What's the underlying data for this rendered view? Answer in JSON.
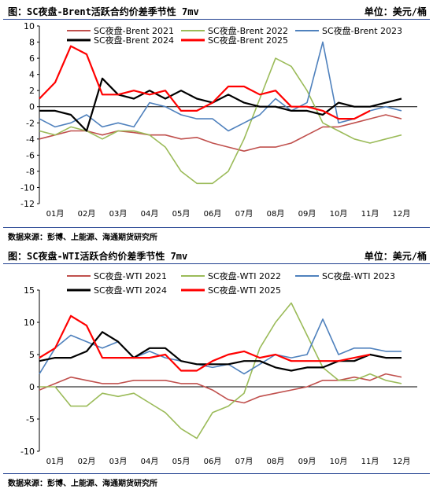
{
  "colors": {
    "y2021": "#c0504d",
    "y2022": "#9bbb59",
    "y2023": "#4f81bd",
    "y2024": "#000000",
    "y2025": "#ff0000",
    "rule": "#1f3f8f"
  },
  "chart_data": [
    {
      "type": "line",
      "title": "图：SC夜盘-Brent活跃合约价差季节性 7mv",
      "unit": "单位：美元/桶",
      "source": "数据来源：彭博、上能源、海通期货研究所",
      "xlabel": "",
      "ylabel": "",
      "ylim": [
        -12,
        10
      ],
      "yticks": [
        10,
        8,
        6,
        4,
        2,
        0,
        -2,
        -4,
        -6,
        -8,
        -10,
        -12
      ],
      "xticks": [
        "01月",
        "02月",
        "03月",
        "04月",
        "05月",
        "06月",
        "07月",
        "08月",
        "09月",
        "10月",
        "11月",
        "12月"
      ],
      "grid": false,
      "legend_position": "top",
      "x": [
        1,
        1.5,
        2,
        2.5,
        3,
        3.5,
        4,
        4.5,
        5,
        5.5,
        6,
        6.5,
        7,
        7.5,
        8,
        8.5,
        9,
        9.5,
        10,
        10.5,
        11,
        11.5,
        12,
        12.5
      ],
      "series": [
        {
          "name": "SC夜盘-Brent 2021",
          "color_key": "y2021",
          "values": [
            -4,
            -3.5,
            -3,
            -3,
            -3.5,
            -3,
            -3.2,
            -3.5,
            -3.5,
            -4,
            -3.8,
            -4.5,
            -5,
            -5.5,
            -5,
            -5,
            -4.5,
            -3.5,
            -2.5,
            -2.5,
            -2,
            -1.5,
            -1,
            -1.5
          ]
        },
        {
          "name": "SC夜盘-Brent 2022",
          "color_key": "y2022",
          "values": [
            -3,
            -3.5,
            -2.5,
            -3,
            -4,
            -3,
            -3,
            -3.5,
            -5,
            -8,
            -9.5,
            -9.5,
            -8,
            -4,
            1,
            6,
            5,
            2,
            -2,
            -3,
            -4,
            -4.5,
            -4,
            -3.5
          ]
        },
        {
          "name": "SC夜盘-Brent 2023",
          "color_key": "y2023",
          "values": [
            -1.5,
            -2.5,
            -2,
            -1,
            -2.5,
            -2,
            -2.5,
            0.5,
            0,
            -1,
            -1.5,
            -1.5,
            -3,
            -2,
            -1,
            1,
            -0.5,
            0.5,
            8,
            -2,
            -1.5,
            -0.5,
            0,
            -0.5
          ]
        },
        {
          "name": "SC夜盘-Brent 2024",
          "color_key": "y2024",
          "values": [
            -0.5,
            -0.5,
            -1,
            -3,
            3.5,
            1.5,
            1,
            2,
            1,
            2,
            1,
            0.5,
            1.5,
            0.5,
            0,
            0,
            -0.5,
            -0.5,
            -1,
            0.5,
            0,
            0,
            0.5,
            1
          ]
        },
        {
          "name": "SC夜盘-Brent 2025",
          "color_key": "y2025",
          "values": [
            1,
            3,
            7.5,
            6.5,
            1.5,
            1.5,
            2,
            1.5,
            2,
            -0.5,
            -0.5,
            0.5,
            2.5,
            2.5,
            1.5,
            2,
            0,
            0,
            -0.5,
            -1.5,
            -1.5,
            -0.5,
            null,
            null
          ]
        }
      ]
    },
    {
      "type": "line",
      "title": "图：SC夜盘-WTI活跃合约价差季节性 7mv",
      "unit": "单位：美元/桶",
      "source": "数据来源：彭博、上能源、海通期货研究所",
      "xlabel": "",
      "ylabel": "",
      "ylim": [
        -10,
        15
      ],
      "yticks": [
        15,
        10,
        5,
        0,
        -5,
        -10
      ],
      "xticks": [
        "01月",
        "02月",
        "03月",
        "04月",
        "05月",
        "06月",
        "07月",
        "08月",
        "09月",
        "10月",
        "11月",
        "12月"
      ],
      "grid": false,
      "legend_position": "top",
      "x": [
        1,
        1.5,
        2,
        2.5,
        3,
        3.5,
        4,
        4.5,
        5,
        5.5,
        6,
        6.5,
        7,
        7.5,
        8,
        8.5,
        9,
        9.5,
        10,
        10.5,
        11,
        11.5,
        12,
        12.5
      ],
      "series": [
        {
          "name": "SC夜盘-WTI 2021",
          "color_key": "y2021",
          "values": [
            -0.5,
            0.5,
            1.5,
            1,
            0.5,
            0.5,
            1,
            1,
            1,
            0.5,
            0.5,
            -0.5,
            -2,
            -2.5,
            -1.5,
            -1,
            -0.5,
            0,
            1,
            1,
            1.5,
            1,
            2,
            1.5
          ]
        },
        {
          "name": "SC夜盘-WTI 2022",
          "color_key": "y2022",
          "values": [
            0,
            0,
            -3,
            -3,
            -1,
            -1.5,
            -1,
            -2.5,
            -4,
            -6.5,
            -8,
            -4,
            -3,
            -1,
            6,
            10,
            13,
            8,
            3,
            1,
            1,
            2,
            1,
            0.5
          ]
        },
        {
          "name": "SC夜盘-WTI 2023",
          "color_key": "y2023",
          "values": [
            2,
            6,
            8,
            7,
            6,
            7,
            4.5,
            5.5,
            4.5,
            4,
            3.5,
            3,
            3.5,
            2,
            3.5,
            5,
            4.5,
            5,
            10.5,
            5,
            6,
            6,
            5.5,
            5.5
          ]
        },
        {
          "name": "SC夜盘-WTI 2024",
          "color_key": "y2024",
          "values": [
            4,
            4.5,
            4.5,
            5.5,
            8.5,
            7,
            4.5,
            6,
            6,
            4,
            3.5,
            3.5,
            3.5,
            4,
            4,
            3,
            2.5,
            3,
            3,
            4,
            4,
            5,
            4.5,
            4.5
          ]
        },
        {
          "name": "SC夜盘-WTI 2025",
          "color_key": "y2025",
          "values": [
            4.5,
            6,
            11,
            9.5,
            4.5,
            4.5,
            4.5,
            4.5,
            5,
            2.5,
            2.5,
            4,
            5,
            5.5,
            4.5,
            5,
            4,
            4,
            4,
            4,
            4.5,
            5,
            null,
            null
          ]
        }
      ]
    }
  ]
}
